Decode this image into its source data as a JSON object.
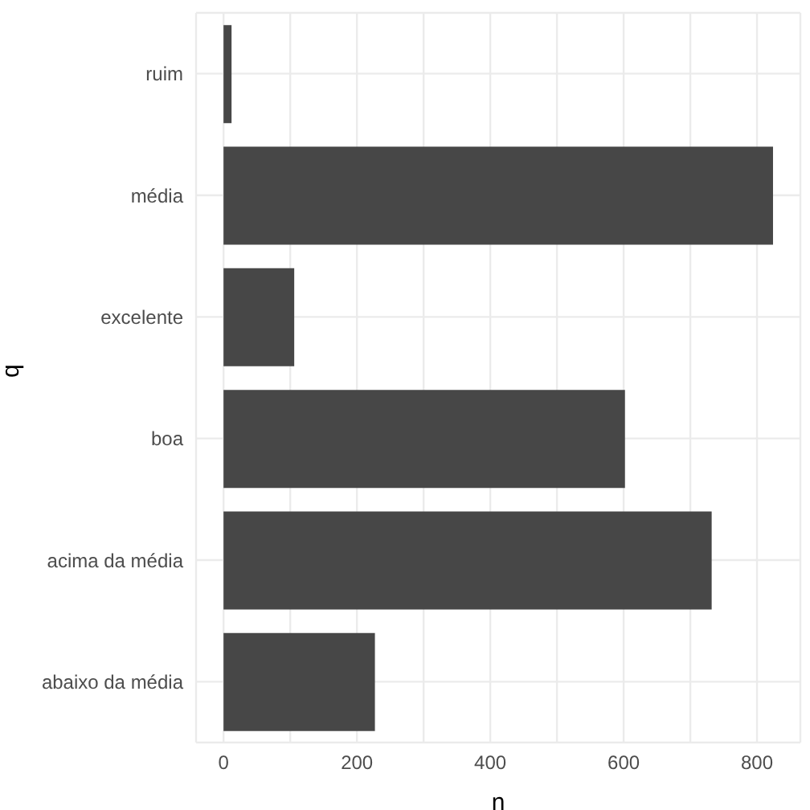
{
  "chart_data": {
    "type": "bar",
    "orientation": "horizontal",
    "xlabel": "n",
    "ylabel": "q",
    "categories": [
      "ruim",
      "média",
      "excelente",
      "boa",
      "acima da média",
      "abaixo da média"
    ],
    "values": [
      12,
      824,
      106,
      602,
      732,
      227
    ],
    "color": "#474747",
    "xlim": [
      -41.2,
      865
    ],
    "xticks": [
      0,
      {
        "value": 100,
        "label": null
      },
      200,
      {
        "value": 300,
        "label": null
      },
      400,
      {
        "value": 500,
        "label": null
      },
      600,
      {
        "value": 700,
        "label": null
      },
      800
    ],
    "grid": true
  }
}
